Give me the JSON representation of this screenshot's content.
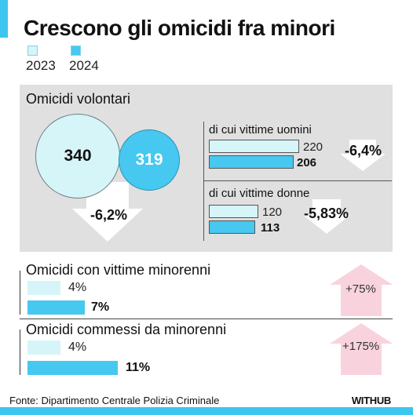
{
  "title": "Crescono gli omicidi fra minori",
  "legend": [
    {
      "label": "2023",
      "color": "#d6f5f8"
    },
    {
      "label": "2024",
      "color": "#46c8f0"
    }
  ],
  "colors": {
    "accent": "#3cc6f0",
    "year2023": "#d6f5f8",
    "year2024": "#46c8f0",
    "increase": "#f8d3de",
    "panel": "#e0e0e0"
  },
  "icons": {
    "decrease": "down-arrow-icon",
    "increase": "up-arrow-icon"
  },
  "chart_data": [
    {
      "type": "bar",
      "title": "Omicidi volontari",
      "series": [
        {
          "name": "2023",
          "values": [
            340
          ]
        },
        {
          "name": "2024",
          "values": [
            319
          ]
        }
      ],
      "change": "-6,2%",
      "breakdown": [
        {
          "label": "di cui vittime uomini",
          "v2023": 220,
          "v2024": 206,
          "change": "-6,4%"
        },
        {
          "label": "di cui vittime donne",
          "v2023": 120,
          "v2024": 113,
          "change": "-5,83%"
        }
      ]
    },
    {
      "type": "bar",
      "title": "Omicidi con vittime minorenni",
      "v2023": "4%",
      "v2024": "7%",
      "values": [
        4,
        7
      ],
      "change": "+75%"
    },
    {
      "type": "bar",
      "title": "Omicidi commessi da minorenni",
      "v2023": "4%",
      "v2024": "11%",
      "values": [
        4,
        11
      ],
      "change": "+175%"
    }
  ],
  "footer": {
    "source": "Fonte: Dipartimento Centrale Polizia Criminale",
    "logo": "WITHUB"
  }
}
